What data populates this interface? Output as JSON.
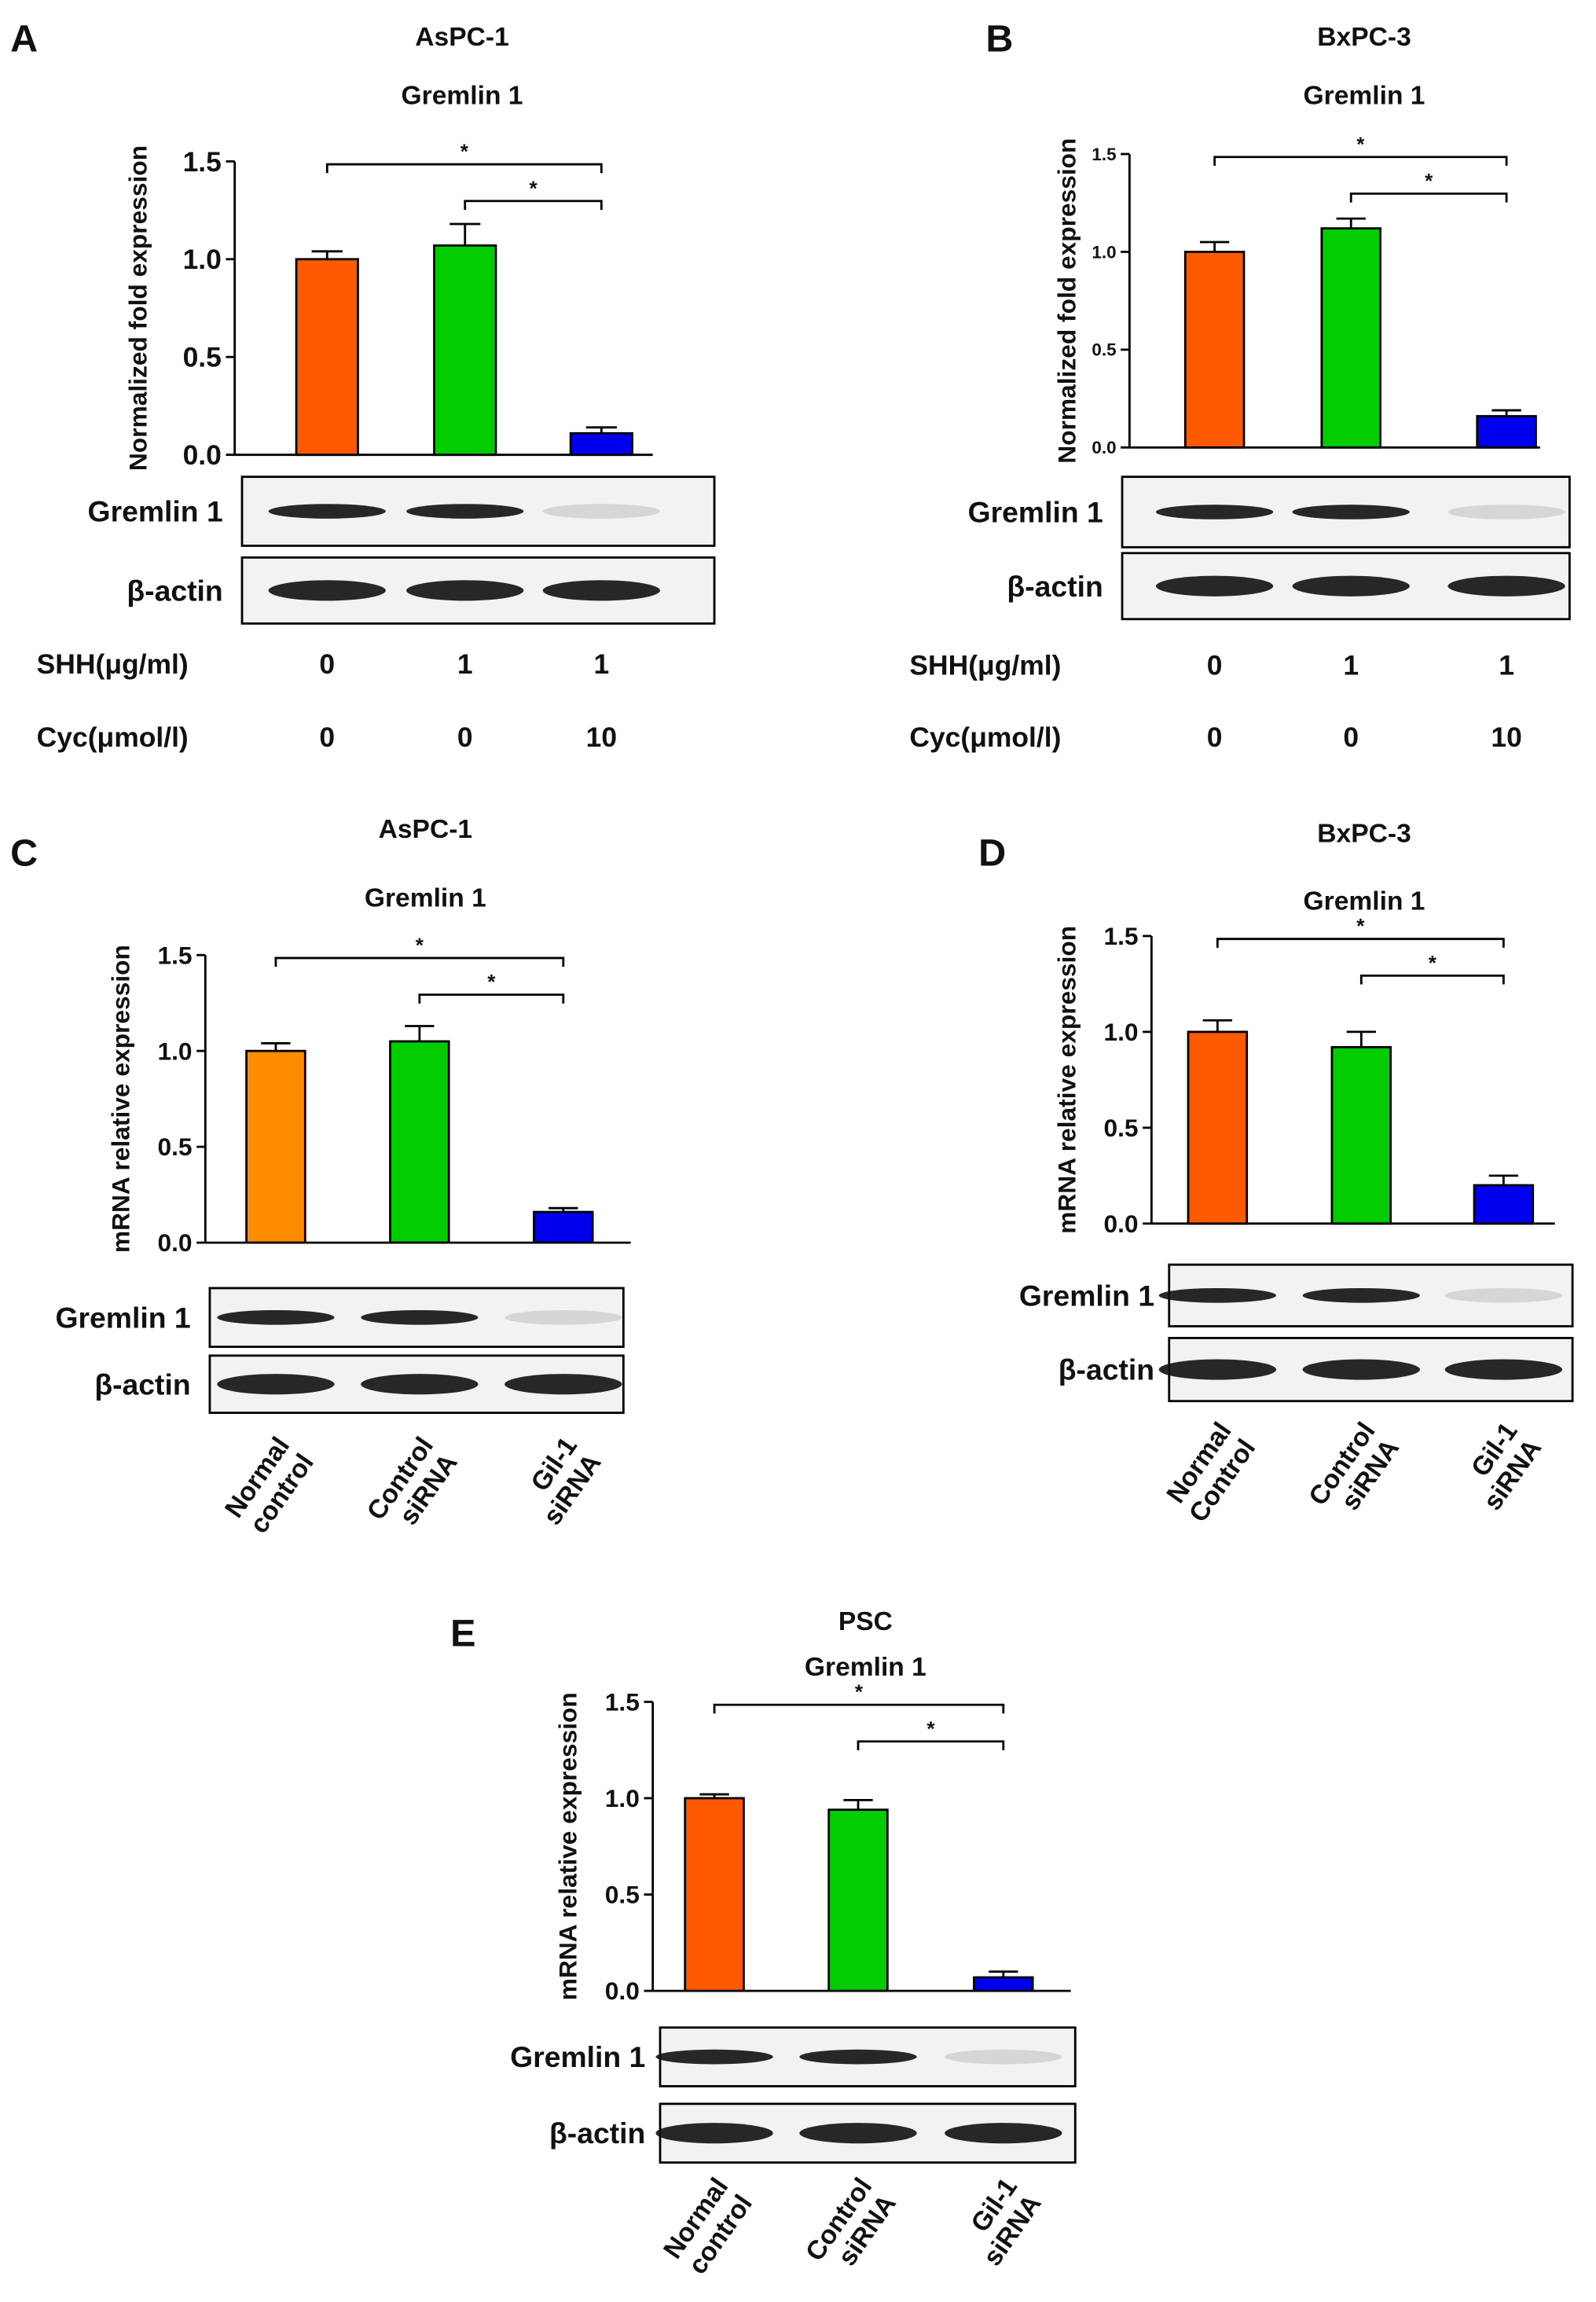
{
  "chart_data": [
    {
      "type": "bar",
      "panel": "A",
      "title": "AsPC-1",
      "subtitle": "Gremlin 1",
      "ylabel": "Normalized fold expression",
      "values": [
        1.0,
        1.07,
        0.11
      ],
      "errors": [
        0.04,
        0.11,
        0.03
      ],
      "colors": [
        "#ff5a00",
        "#00cc00",
        "#0000ee"
      ],
      "ylim": [
        0,
        1.5
      ],
      "yticks": [
        {
          "value": 0,
          "label": "0.0"
        },
        {
          "value": 0.5,
          "label": "0.5"
        },
        {
          "value": 1,
          "label": "1.0"
        },
        {
          "value": 1.5,
          "label": "1.5"
        }
      ],
      "annotations": [
        "*",
        "*"
      ],
      "blots": [
        "Gremlin 1",
        "β-actin"
      ],
      "conditions": [
        {
          "label": "SHH(μg/ml)",
          "values": [
            0,
            1,
            1
          ]
        },
        {
          "label": "Cyc(μmol/l)",
          "values": [
            0,
            0,
            10
          ]
        }
      ]
    },
    {
      "type": "bar",
      "panel": "B",
      "title": "BxPC-3",
      "subtitle": "Gremlin 1",
      "ylabel": "Normalized fold expression",
      "values": [
        1.0,
        1.12,
        0.16
      ],
      "errors": [
        0.05,
        0.05,
        0.03
      ],
      "colors": [
        "#ff5a00",
        "#00cc00",
        "#0000ee"
      ],
      "ylim": [
        0,
        1.5
      ],
      "yticks": [
        {
          "value": 0,
          "label": "0.0"
        },
        {
          "value": 0.5,
          "label": "0.5"
        },
        {
          "value": 1,
          "label": "1.0"
        },
        {
          "value": 1.5,
          "label": "1.5"
        }
      ],
      "annotations": [
        "*",
        "*"
      ],
      "blots": [
        "Gremlin 1",
        "β-actin"
      ],
      "conditions": [
        {
          "label": "SHH(μg/ml)",
          "values": [
            0,
            1,
            1
          ]
        },
        {
          "label": "Cyc(μmol/l)",
          "values": [
            0,
            0,
            10
          ]
        }
      ]
    },
    {
      "type": "bar",
      "panel": "C",
      "title": "AsPC-1",
      "subtitle": "Gremlin 1",
      "ylabel": "mRNA relative expression",
      "categories": [
        [
          "Normal",
          "control"
        ],
        [
          "Control",
          "siRNA"
        ],
        [
          "Gil-1",
          "siRNA"
        ]
      ],
      "values": [
        1.0,
        1.05,
        0.16
      ],
      "errors": [
        0.04,
        0.08,
        0.02
      ],
      "colors": [
        "#ff8c00",
        "#00cc00",
        "#0000ee"
      ],
      "ylim": [
        0,
        1.5
      ],
      "yticks": [
        {
          "value": 0,
          "label": "0.0"
        },
        {
          "value": 0.5,
          "label": "0.5"
        },
        {
          "value": 1,
          "label": "1.0"
        },
        {
          "value": 1.5,
          "label": "1.5"
        }
      ],
      "annotations": [
        "*",
        "*"
      ],
      "blots": [
        "Gremlin 1",
        "β-actin"
      ]
    },
    {
      "type": "bar",
      "panel": "D",
      "title": "BxPC-3",
      "subtitle": "Gremlin 1",
      "ylabel": "mRNA relative expression",
      "categories": [
        [
          "Normal",
          "Control"
        ],
        [
          "Control",
          "siRNA"
        ],
        [
          "Gil-1",
          "siRNA"
        ]
      ],
      "values": [
        1.0,
        0.92,
        0.2
      ],
      "errors": [
        0.06,
        0.08,
        0.05
      ],
      "colors": [
        "#ff5a00",
        "#00cc00",
        "#0000ee"
      ],
      "ylim": [
        0,
        1.5
      ],
      "yticks": [
        {
          "value": 0,
          "label": "0.0"
        },
        {
          "value": 0.5,
          "label": "0.5"
        },
        {
          "value": 1,
          "label": "1.0"
        },
        {
          "value": 1.5,
          "label": "1.5"
        }
      ],
      "annotations": [
        "*",
        "*"
      ],
      "blots": [
        "Gremlin 1",
        "β-actin"
      ]
    },
    {
      "type": "bar",
      "panel": "E",
      "title": "PSC",
      "subtitle": "Gremlin 1",
      "ylabel": "mRNA relative expression",
      "categories": [
        [
          "Normal",
          "control"
        ],
        [
          "Control",
          "siRNA"
        ],
        [
          "Gil-1",
          "siRNA"
        ]
      ],
      "values": [
        1.0,
        0.94,
        0.07
      ],
      "errors": [
        0.02,
        0.05,
        0.03
      ],
      "colors": [
        "#ff5a00",
        "#00cc00",
        "#0000ee"
      ],
      "ylim": [
        0,
        1.5
      ],
      "yticks": [
        {
          "value": 0,
          "label": "0.0"
        },
        {
          "value": 0.5,
          "label": "0.5"
        },
        {
          "value": 1,
          "label": "1.0"
        },
        {
          "value": 1.5,
          "label": "1.5"
        }
      ],
      "annotations": [
        "*",
        "*"
      ],
      "blots": [
        "Gremlin 1",
        "β-actin"
      ]
    }
  ]
}
